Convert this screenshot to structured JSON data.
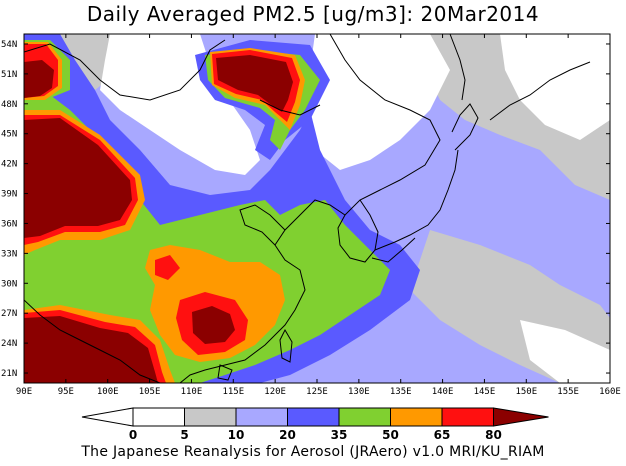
{
  "title": "Daily Averaged PM2.5 [ug/m3]: 20Mar2014",
  "footer": "The Japanese Reanalysis for Aerosol (JRAero) v1.0 MRI/KU_RIAM",
  "map": {
    "lon_range": [
      90,
      160
    ],
    "lat_range": [
      20,
      55
    ],
    "lon_ticks": [
      "90E",
      "95E",
      "100E",
      "105E",
      "110E",
      "115E",
      "120E",
      "125E",
      "130E",
      "135E",
      "140E",
      "145E",
      "150E",
      "155E",
      "160E"
    ],
    "lat_ticks": [
      "21N",
      "24N",
      "27N",
      "30N",
      "33N",
      "36N",
      "39N",
      "42N",
      "45N",
      "48N",
      "51N",
      "54N"
    ]
  },
  "colorbar": {
    "levels": [
      "0",
      "5",
      "10",
      "20",
      "35",
      "50",
      "65",
      "80"
    ],
    "colors": [
      "#ffffff",
      "#c8c8c8",
      "#a8a8ff",
      "#5a5aff",
      "#80d030",
      "#ff9900",
      "#ff1010",
      "#8b0000"
    ]
  },
  "colors": {
    "c0": "#ffffff",
    "c5": "#c8c8c8",
    "c10": "#a8a8ff",
    "c20": "#5a5aff",
    "c35": "#80d030",
    "c50": "#ff9900",
    "c65": "#ff1010",
    "c80": "#8b0000"
  }
}
